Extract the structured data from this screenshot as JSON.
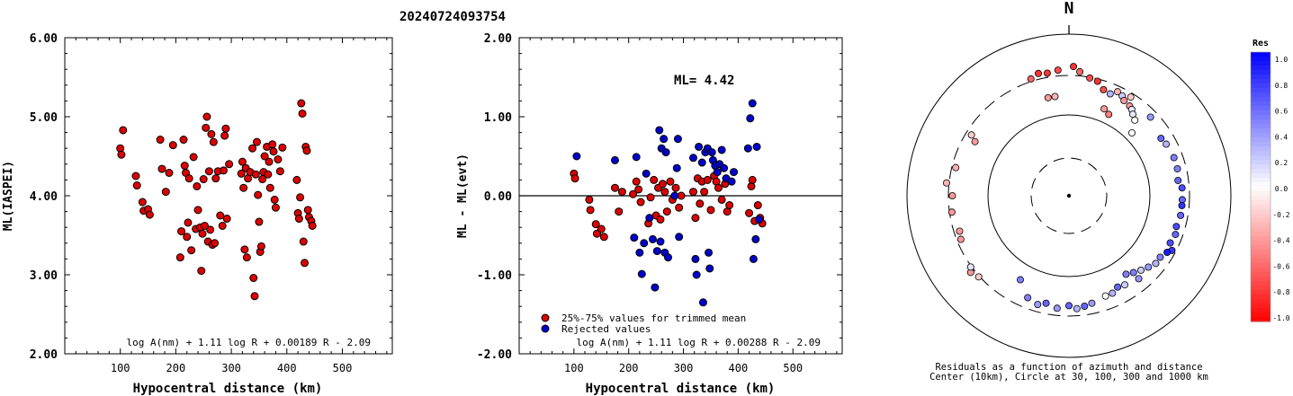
{
  "figure_title": "20240724093754",
  "chart_data": [
    {
      "type": "scatter",
      "xlabel": "Hypocentral distance (km)",
      "ylabel": "ML(IASPEI)",
      "xlim": [
        0,
        590
      ],
      "ylim": [
        2.0,
        6.0
      ],
      "xticks": [
        "100",
        "200",
        "300",
        "400",
        "500"
      ],
      "yticks": [
        "2.00",
        "3.00",
        "4.00",
        "5.00",
        "6.00"
      ],
      "formula": "log A(nm) + 1.11 log R + 0.00189 R - 2.09",
      "point_color": "#dd0000",
      "points": [
        [
          100,
          4.6
        ],
        [
          102,
          4.52
        ],
        [
          105,
          4.83
        ],
        [
          128,
          4.25
        ],
        [
          130,
          4.13
        ],
        [
          140,
          3.92
        ],
        [
          142,
          3.81
        ],
        [
          150,
          3.83
        ],
        [
          153,
          3.76
        ],
        [
          172,
          4.71
        ],
        [
          175,
          4.34
        ],
        [
          182,
          4.05
        ],
        [
          188,
          4.29
        ],
        [
          195,
          4.64
        ],
        [
          208,
          3.22
        ],
        [
          210,
          3.55
        ],
        [
          214,
          4.71
        ],
        [
          216,
          4.38
        ],
        [
          218,
          4.29
        ],
        [
          220,
          3.48
        ],
        [
          222,
          3.66
        ],
        [
          224,
          4.22
        ],
        [
          228,
          3.31
        ],
        [
          232,
          4.49
        ],
        [
          236,
          3.58
        ],
        [
          238,
          4.12
        ],
        [
          240,
          3.82
        ],
        [
          244,
          3.6
        ],
        [
          246,
          3.05
        ],
        [
          248,
          3.52
        ],
        [
          250,
          4.21
        ],
        [
          252,
          3.62
        ],
        [
          254,
          4.86
        ],
        [
          256,
          5.0
        ],
        [
          258,
          3.42
        ],
        [
          260,
          4.31
        ],
        [
          262,
          3.57
        ],
        [
          264,
          4.78
        ],
        [
          266,
          3.38
        ],
        [
          268,
          4.68
        ],
        [
          270,
          3.4
        ],
        [
          272,
          4.22
        ],
        [
          276,
          4.31
        ],
        [
          280,
          3.75
        ],
        [
          284,
          3.62
        ],
        [
          286,
          4.32
        ],
        [
          288,
          4.76
        ],
        [
          290,
          4.85
        ],
        [
          292,
          3.71
        ],
        [
          296,
          4.4
        ],
        [
          318,
          4.28
        ],
        [
          320,
          4.43
        ],
        [
          322,
          4.1
        ],
        [
          324,
          3.32
        ],
        [
          326,
          4.35
        ],
        [
          328,
          3.22
        ],
        [
          330,
          4.22
        ],
        [
          334,
          4.3
        ],
        [
          338,
          4.6
        ],
        [
          340,
          2.96
        ],
        [
          342,
          2.73
        ],
        [
          344,
          4.27
        ],
        [
          346,
          4.68
        ],
        [
          348,
          4.01
        ],
        [
          350,
          3.67
        ],
        [
          352,
          3.29
        ],
        [
          354,
          3.36
        ],
        [
          356,
          4.21
        ],
        [
          358,
          4.3
        ],
        [
          360,
          4.5
        ],
        [
          364,
          4.62
        ],
        [
          366,
          4.27
        ],
        [
          368,
          4.43
        ],
        [
          370,
          4.1
        ],
        [
          374,
          4.65
        ],
        [
          376,
          4.56
        ],
        [
          378,
          3.95
        ],
        [
          380,
          3.85
        ],
        [
          384,
          4.46
        ],
        [
          388,
          4.31
        ],
        [
          392,
          4.61
        ],
        [
          418,
          4.2
        ],
        [
          420,
          3.78
        ],
        [
          422,
          3.71
        ],
        [
          424,
          3.98
        ],
        [
          426,
          5.17
        ],
        [
          428,
          5.04
        ],
        [
          430,
          3.42
        ],
        [
          432,
          3.15
        ],
        [
          434,
          4.62
        ],
        [
          436,
          4.57
        ],
        [
          438,
          3.82
        ],
        [
          440,
          3.73
        ],
        [
          444,
          3.68
        ],
        [
          446,
          3.62
        ]
      ]
    },
    {
      "type": "scatter",
      "xlabel": "Hypocentral distance (km)",
      "ylabel": "ML - ML(evt)",
      "xlim": [
        0,
        590
      ],
      "ylim": [
        -2.0,
        2.0
      ],
      "xticks": [
        "100",
        "200",
        "300",
        "400",
        "500"
      ],
      "yticks": [
        "-2.00",
        "-1.00",
        "0.00",
        "1.00",
        "2.00"
      ],
      "annotation": "ML= 4.42",
      "legend": [
        "25%-75% values for trimmed mean",
        "Rejected values"
      ],
      "formula": "log A(nm) + 1.11 log R + 0.00288 R - 2.09",
      "series": [
        {
          "name": "25%-75% values for trimmed mean",
          "color": "#dd0000",
          "points": [
            [
              100,
              0.28
            ],
            [
              102,
              0.22
            ],
            [
              128,
              -0.05
            ],
            [
              130,
              -0.18
            ],
            [
              140,
              -0.36
            ],
            [
              142,
              -0.48
            ],
            [
              150,
              -0.42
            ],
            [
              155,
              -0.52
            ],
            [
              175,
              0.1
            ],
            [
              182,
              -0.2
            ],
            [
              188,
              0.05
            ],
            [
              208,
              0.02
            ],
            [
              214,
              0.18
            ],
            [
              218,
              0.08
            ],
            [
              222,
              -0.08
            ],
            [
              236,
              -0.35
            ],
            [
              240,
              -0.02
            ],
            [
              246,
              0.2
            ],
            [
              250,
              -0.25
            ],
            [
              254,
              0.1
            ],
            [
              258,
              -0.3
            ],
            [
              262,
              0.15
            ],
            [
              266,
              0.05
            ],
            [
              270,
              -0.2
            ],
            [
              276,
              0.18
            ],
            [
              280,
              -0.05
            ],
            [
              286,
              0.1
            ],
            [
              292,
              -0.15
            ],
            [
              296,
              0.0
            ],
            [
              318,
              0.05
            ],
            [
              322,
              -0.28
            ],
            [
              326,
              0.22
            ],
            [
              330,
              -0.1
            ],
            [
              334,
              0.18
            ],
            [
              338,
              0.05
            ],
            [
              344,
              0.2
            ],
            [
              350,
              -0.18
            ],
            [
              356,
              0.25
            ],
            [
              360,
              0.18
            ],
            [
              364,
              0.1
            ],
            [
              370,
              -0.05
            ],
            [
              376,
              0.15
            ],
            [
              380,
              -0.2
            ],
            [
              384,
              -0.12
            ],
            [
              420,
              -0.22
            ],
            [
              424,
              0.12
            ],
            [
              426,
              0.2
            ],
            [
              430,
              -0.32
            ],
            [
              436,
              -0.12
            ],
            [
              440,
              -0.28
            ],
            [
              444,
              -0.35
            ]
          ]
        },
        {
          "name": "Rejected values",
          "color": "#0000cc",
          "points": [
            [
              105,
              0.5
            ],
            [
              175,
              0.45
            ],
            [
              210,
              -0.53
            ],
            [
              214,
              0.49
            ],
            [
              220,
              -0.72
            ],
            [
              224,
              -0.99
            ],
            [
              228,
              -0.6
            ],
            [
              232,
              0.28
            ],
            [
              238,
              -0.28
            ],
            [
              244,
              -0.55
            ],
            [
              248,
              -1.16
            ],
            [
              252,
              -0.7
            ],
            [
              256,
              0.83
            ],
            [
              258,
              -0.58
            ],
            [
              260,
              0.6
            ],
            [
              264,
              0.72
            ],
            [
              266,
              -0.72
            ],
            [
              268,
              0.55
            ],
            [
              272,
              -0.78
            ],
            [
              284,
              0.0
            ],
            [
              288,
              0.35
            ],
            [
              290,
              0.72
            ],
            [
              292,
              -0.52
            ],
            [
              318,
              0.48
            ],
            [
              322,
              -0.8
            ],
            [
              324,
              -1.0
            ],
            [
              328,
              0.62
            ],
            [
              334,
              0.42
            ],
            [
              336,
              -1.35
            ],
            [
              340,
              0.55
            ],
            [
              344,
              0.6
            ],
            [
              346,
              -0.72
            ],
            [
              348,
              -0.92
            ],
            [
              352,
              0.55
            ],
            [
              354,
              0.45
            ],
            [
              358,
              0.38
            ],
            [
              362,
              0.3
            ],
            [
              366,
              0.4
            ],
            [
              370,
              0.58
            ],
            [
              374,
              0.35
            ],
            [
              378,
              0.22
            ],
            [
              388,
              0.18
            ],
            [
              392,
              0.3
            ],
            [
              418,
              0.6
            ],
            [
              422,
              0.98
            ],
            [
              426,
              1.17
            ],
            [
              428,
              -0.8
            ],
            [
              432,
              -0.55
            ],
            [
              434,
              0.62
            ],
            [
              438,
              -0.3
            ]
          ]
        }
      ]
    },
    {
      "type": "scatter",
      "subtype": "polar",
      "north_label": "N",
      "color_scale_title": "Res",
      "color_scale_ticks": [
        "1.0",
        "0.8",
        "0.6",
        "0.4",
        "0.2",
        "0.0",
        "-0.2",
        "-0.4",
        "-0.6",
        "-0.8",
        "-1.0"
      ],
      "caption_line1": "Residuals as a function of azimuth and distance",
      "caption_line2": "Center (10km), Circle at 30, 100, 300 and 1000 km",
      "points_az_r_res": [
        [
          -5,
          0.78,
          -0.7
        ],
        [
          -10,
          0.77,
          -0.8
        ],
        [
          -14,
          0.78,
          -0.8
        ],
        [
          -18,
          0.76,
          -0.6
        ],
        [
          2,
          0.8,
          -0.8
        ],
        [
          5,
          0.77,
          -0.6
        ],
        [
          -12,
          0.62,
          -0.4
        ],
        [
          -8,
          0.62,
          -0.3
        ],
        [
          10,
          0.74,
          -0.7
        ],
        [
          14,
          0.73,
          -0.8
        ],
        [
          18,
          0.69,
          -0.7
        ],
        [
          22,
          0.68,
          0.3
        ],
        [
          25,
          0.71,
          -0.3
        ],
        [
          28,
          0.7,
          0.2
        ],
        [
          30,
          0.68,
          -0.4
        ],
        [
          32,
          0.72,
          -0.2
        ],
        [
          34,
          0.67,
          -0.4
        ],
        [
          36,
          0.66,
          0.1
        ],
        [
          38,
          0.64,
          0.1
        ],
        [
          41,
          0.62,
          0.0
        ],
        [
          45,
          0.55,
          0.0
        ],
        [
          22,
          0.58,
          -0.4
        ],
        [
          26,
          0.56,
          -0.5
        ],
        [
          46,
          0.7,
          0.4
        ],
        [
          58,
          0.67,
          0.6
        ],
        [
          62,
          0.68,
          0.3
        ],
        [
          70,
          0.69,
          0.5
        ],
        [
          76,
          0.69,
          0.5
        ],
        [
          82,
          0.68,
          0.6
        ],
        [
          86,
          0.7,
          0.7
        ],
        [
          92,
          0.7,
          0.6
        ],
        [
          95,
          0.7,
          0.8
        ],
        [
          100,
          0.7,
          0.6
        ],
        [
          106,
          0.69,
          0.7
        ],
        [
          110,
          0.7,
          0.6
        ],
        [
          115,
          0.69,
          0.7
        ],
        [
          118,
          0.72,
          0.8
        ],
        [
          120,
          0.7,
          0.9
        ],
        [
          124,
          0.68,
          0.5
        ],
        [
          128,
          0.68,
          0.3
        ],
        [
          132,
          0.66,
          0.4
        ],
        [
          136,
          0.64,
          0.2
        ],
        [
          140,
          0.62,
          0.5
        ],
        [
          140,
          0.67,
          0.4
        ],
        [
          144,
          0.6,
          0.5
        ],
        [
          148,
          0.65,
          0.2
        ],
        [
          152,
          0.64,
          0.6
        ],
        [
          156,
          0.66,
          0.3
        ],
        [
          160,
          0.66,
          0.0
        ],
        [
          168,
          0.68,
          0.4
        ],
        [
          172,
          0.69,
          0.6
        ],
        [
          176,
          0.7,
          0.3
        ],
        [
          180,
          0.68,
          0.6
        ],
        [
          186,
          0.7,
          0.4
        ],
        [
          192,
          0.68,
          0.6
        ],
        [
          196,
          0.7,
          0.4
        ],
        [
          202,
          0.68,
          0.5
        ],
        [
          210,
          0.6,
          0.5
        ],
        [
          228,
          0.75,
          -0.2
        ],
        [
          232,
          0.77,
          -0.4
        ],
        [
          234,
          0.75,
          0.1
        ],
        [
          248,
          0.72,
          -0.4
        ],
        [
          252,
          0.71,
          -0.4
        ],
        [
          262,
          0.73,
          -0.4
        ],
        [
          270,
          0.72,
          -0.4
        ],
        [
          276,
          0.76,
          -0.3
        ],
        [
          284,
          0.72,
          -0.3
        ],
        [
          300,
          0.67,
          -0.4
        ],
        [
          302,
          0.71,
          -0.2
        ]
      ]
    }
  ]
}
